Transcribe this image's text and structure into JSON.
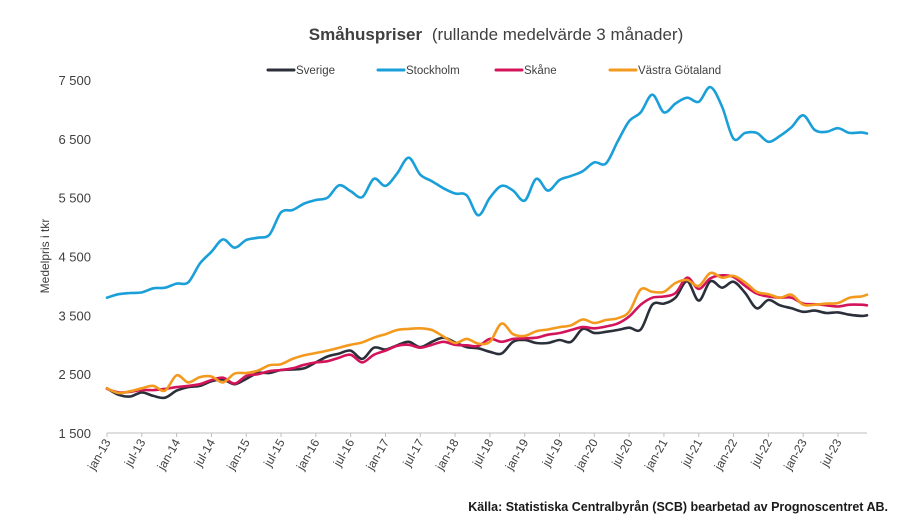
{
  "chart_data": {
    "type": "line",
    "title": "Småhuspriser",
    "subtitle": "(rullande medelvärde 3 månader)",
    "ylabel": "Medelpris i tkr",
    "xlabel": "",
    "source": "Källa: Statistiska Centralbyrån (SCB) bearbetad av Prognoscentret AB.",
    "ylim": [
      1500,
      7500
    ],
    "yticks": [
      1500,
      2500,
      3500,
      4500,
      5500,
      6500,
      7500
    ],
    "ytick_labels": [
      "1 500",
      "2 500",
      "3 500",
      "4 500",
      "5 500",
      "6 500",
      "7 500"
    ],
    "x_start_month": 0,
    "x_end_month": 131,
    "xticks": [
      0,
      6,
      12,
      18,
      24,
      30,
      36,
      42,
      48,
      54,
      60,
      66,
      72,
      78,
      84,
      90,
      96,
      102,
      108,
      114,
      120,
      126
    ],
    "xtick_labels": [
      "jan-13",
      "jul-13",
      "jan-14",
      "jul-14",
      "jan-15",
      "jul-15",
      "jan-16",
      "jul-16",
      "jan-17",
      "jul-17",
      "jan-18",
      "jul-18",
      "jan-19",
      "jul-19",
      "jan-20",
      "jul-20",
      "jan-21",
      "jul-21",
      "jan-22",
      "jul-22",
      "jan-23",
      "jul-23"
    ],
    "legend_position": "top",
    "grid": false,
    "series": [
      {
        "name": "Sverige",
        "color": "#2b2f3a",
        "x": [
          0,
          2,
          4,
          6,
          8,
          10,
          12,
          14,
          16,
          18,
          20,
          22,
          24,
          26,
          28,
          30,
          32,
          34,
          36,
          38,
          40,
          42,
          44,
          46,
          48,
          50,
          52,
          54,
          56,
          58,
          60,
          62,
          64,
          66,
          68,
          70,
          72,
          74,
          76,
          78,
          80,
          82,
          84,
          86,
          88,
          90,
          92,
          94,
          96,
          98,
          100,
          102,
          104,
          106,
          108,
          110,
          112,
          114,
          116,
          118,
          120,
          122,
          124,
          126,
          128,
          130,
          131
        ],
        "y": [
          2260,
          2150,
          2120,
          2190,
          2130,
          2100,
          2220,
          2280,
          2300,
          2380,
          2410,
          2330,
          2420,
          2520,
          2520,
          2570,
          2580,
          2600,
          2700,
          2800,
          2850,
          2900,
          2760,
          2950,
          2920,
          2990,
          3050,
          2960,
          3050,
          3120,
          3040,
          2960,
          2940,
          2880,
          2850,
          3050,
          3080,
          3030,
          3030,
          3080,
          3050,
          3270,
          3200,
          3220,
          3250,
          3290,
          3260,
          3680,
          3700,
          3800,
          4080,
          3750,
          4080,
          3970,
          4070,
          3880,
          3620,
          3760,
          3670,
          3620,
          3560,
          3580,
          3540,
          3550,
          3510,
          3490,
          3500
        ]
      },
      {
        "name": "Stockholm",
        "color": "#1a9fd9",
        "x": [
          0,
          2,
          4,
          6,
          8,
          10,
          12,
          14,
          16,
          18,
          20,
          22,
          24,
          26,
          28,
          30,
          32,
          34,
          36,
          38,
          40,
          42,
          44,
          46,
          48,
          50,
          52,
          54,
          56,
          58,
          60,
          62,
          64,
          66,
          68,
          70,
          72,
          74,
          76,
          78,
          80,
          82,
          84,
          86,
          88,
          90,
          92,
          94,
          96,
          98,
          100,
          102,
          104,
          106,
          108,
          110,
          112,
          114,
          116,
          118,
          120,
          122,
          124,
          126,
          128,
          130,
          131
        ],
        "y": [
          3800,
          3860,
          3880,
          3890,
          3960,
          3970,
          4040,
          4060,
          4380,
          4580,
          4790,
          4650,
          4780,
          4820,
          4870,
          5250,
          5290,
          5400,
          5460,
          5500,
          5710,
          5610,
          5510,
          5820,
          5700,
          5910,
          6180,
          5890,
          5780,
          5660,
          5570,
          5540,
          5200,
          5500,
          5700,
          5620,
          5450,
          5820,
          5620,
          5800,
          5870,
          5950,
          6100,
          6080,
          6450,
          6800,
          6950,
          7250,
          6950,
          7100,
          7200,
          7130,
          7380,
          7050,
          6500,
          6600,
          6600,
          6450,
          6550,
          6700,
          6900,
          6650,
          6620,
          6680,
          6600,
          6610,
          6590
        ]
      },
      {
        "name": "Skåne",
        "color": "#d4145a",
        "x": [
          0,
          2,
          4,
          6,
          8,
          10,
          12,
          14,
          16,
          18,
          20,
          22,
          24,
          26,
          28,
          30,
          32,
          34,
          36,
          38,
          40,
          42,
          44,
          46,
          48,
          50,
          52,
          54,
          56,
          58,
          60,
          62,
          64,
          66,
          68,
          70,
          72,
          74,
          76,
          78,
          80,
          82,
          84,
          86,
          88,
          90,
          92,
          94,
          96,
          98,
          100,
          102,
          104,
          106,
          108,
          110,
          112,
          114,
          116,
          118,
          120,
          122,
          124,
          126,
          128,
          130,
          131
        ],
        "y": [
          2250,
          2190,
          2200,
          2230,
          2230,
          2250,
          2280,
          2300,
          2330,
          2400,
          2440,
          2340,
          2470,
          2500,
          2550,
          2570,
          2600,
          2660,
          2700,
          2720,
          2780,
          2830,
          2700,
          2830,
          2900,
          2980,
          3000,
          2950,
          3000,
          3050,
          3000,
          2990,
          2980,
          3100,
          3050,
          3100,
          3110,
          3120,
          3170,
          3200,
          3250,
          3300,
          3280,
          3310,
          3360,
          3480,
          3680,
          3800,
          3820,
          3880,
          4140,
          3950,
          4130,
          4180,
          4150,
          4000,
          3870,
          3820,
          3800,
          3800,
          3700,
          3690,
          3670,
          3650,
          3680,
          3680,
          3670
        ]
      },
      {
        "name": "Västra Götaland",
        "color": "#f39a1e",
        "x": [
          0,
          2,
          4,
          6,
          8,
          10,
          12,
          14,
          16,
          18,
          20,
          22,
          24,
          26,
          28,
          30,
          32,
          34,
          36,
          38,
          40,
          42,
          44,
          46,
          48,
          50,
          52,
          54,
          56,
          58,
          60,
          62,
          64,
          66,
          68,
          70,
          72,
          74,
          76,
          78,
          80,
          82,
          84,
          86,
          88,
          90,
          92,
          94,
          96,
          98,
          100,
          102,
          104,
          106,
          108,
          110,
          112,
          114,
          116,
          118,
          120,
          122,
          124,
          126,
          128,
          130,
          131
        ],
        "y": [
          2260,
          2180,
          2210,
          2260,
          2300,
          2220,
          2480,
          2360,
          2450,
          2460,
          2360,
          2510,
          2520,
          2560,
          2650,
          2670,
          2760,
          2820,
          2860,
          2900,
          2950,
          3000,
          3040,
          3120,
          3180,
          3250,
          3270,
          3280,
          3250,
          3140,
          3030,
          3100,
          3020,
          3050,
          3360,
          3180,
          3150,
          3230,
          3260,
          3300,
          3330,
          3430,
          3370,
          3420,
          3450,
          3560,
          3940,
          3900,
          3900,
          4050,
          4100,
          4000,
          4220,
          4140,
          4170,
          4060,
          3900,
          3860,
          3800,
          3850,
          3680,
          3680,
          3700,
          3710,
          3800,
          3820,
          3850
        ]
      }
    ]
  }
}
